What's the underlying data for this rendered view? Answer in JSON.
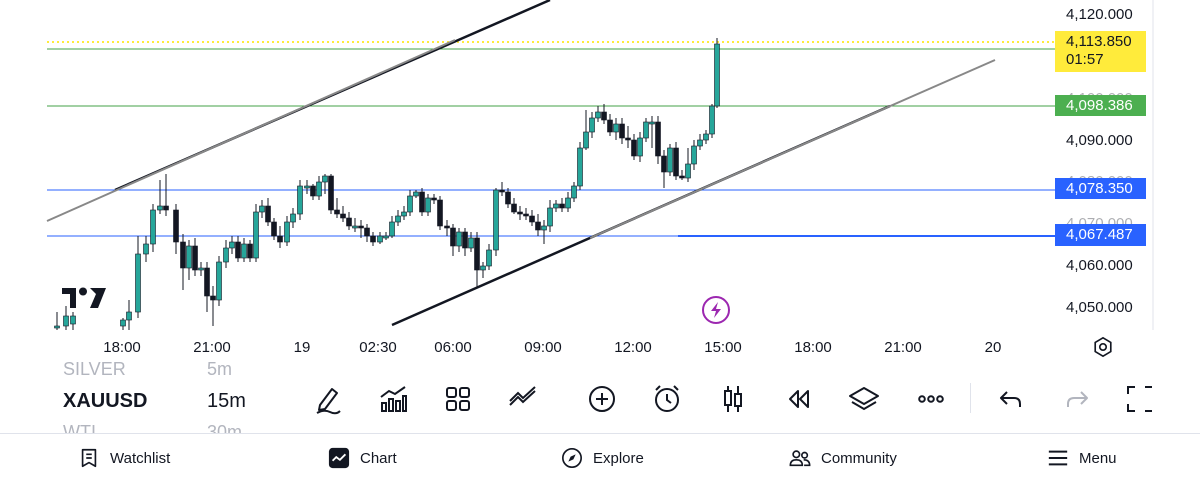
{
  "chart": {
    "symbol": "XAUUSD",
    "interval": "15m",
    "symbol_above": "SILVER",
    "interval_above": "5m",
    "symbol_below": "WTI",
    "interval_below": "30m",
    "price_axis": [
      "4,120.000",
      "4,100.000",
      "4,090.000",
      "4,080.000",
      "4,070.000",
      "4,060.000",
      "4,050.000"
    ],
    "time_axis": [
      "18:00",
      "21:00",
      "19",
      "02:30",
      "06:00",
      "09:00",
      "12:00",
      "15:00",
      "18:00",
      "21:00",
      "20"
    ],
    "current_price": "4,113.850",
    "countdown": "01:57",
    "level_green": "4,098.386",
    "level_blue_1": "4,078.350",
    "level_blue_2": "4,067.487",
    "colors": {
      "up": "#26a69a",
      "down": "#131722",
      "current": "#ffeb3b",
      "green_level": "#4caf50",
      "blue_level": "#2962ff",
      "alert": "#9c27b0"
    }
  },
  "toolbar": {
    "icons": [
      "pencil-icon",
      "indicators-icon",
      "layouts-icon",
      "drawing-tools-icon",
      "add-icon",
      "alert-clock-icon",
      "candles-icon",
      "replay-icon",
      "layers-icon",
      "more-icon",
      "undo-icon",
      "redo-icon",
      "fullscreen-icon"
    ]
  },
  "nav": {
    "watchlist": "Watchlist",
    "chart": "Chart",
    "explore": "Explore",
    "community": "Community",
    "menu": "Menu"
  }
}
